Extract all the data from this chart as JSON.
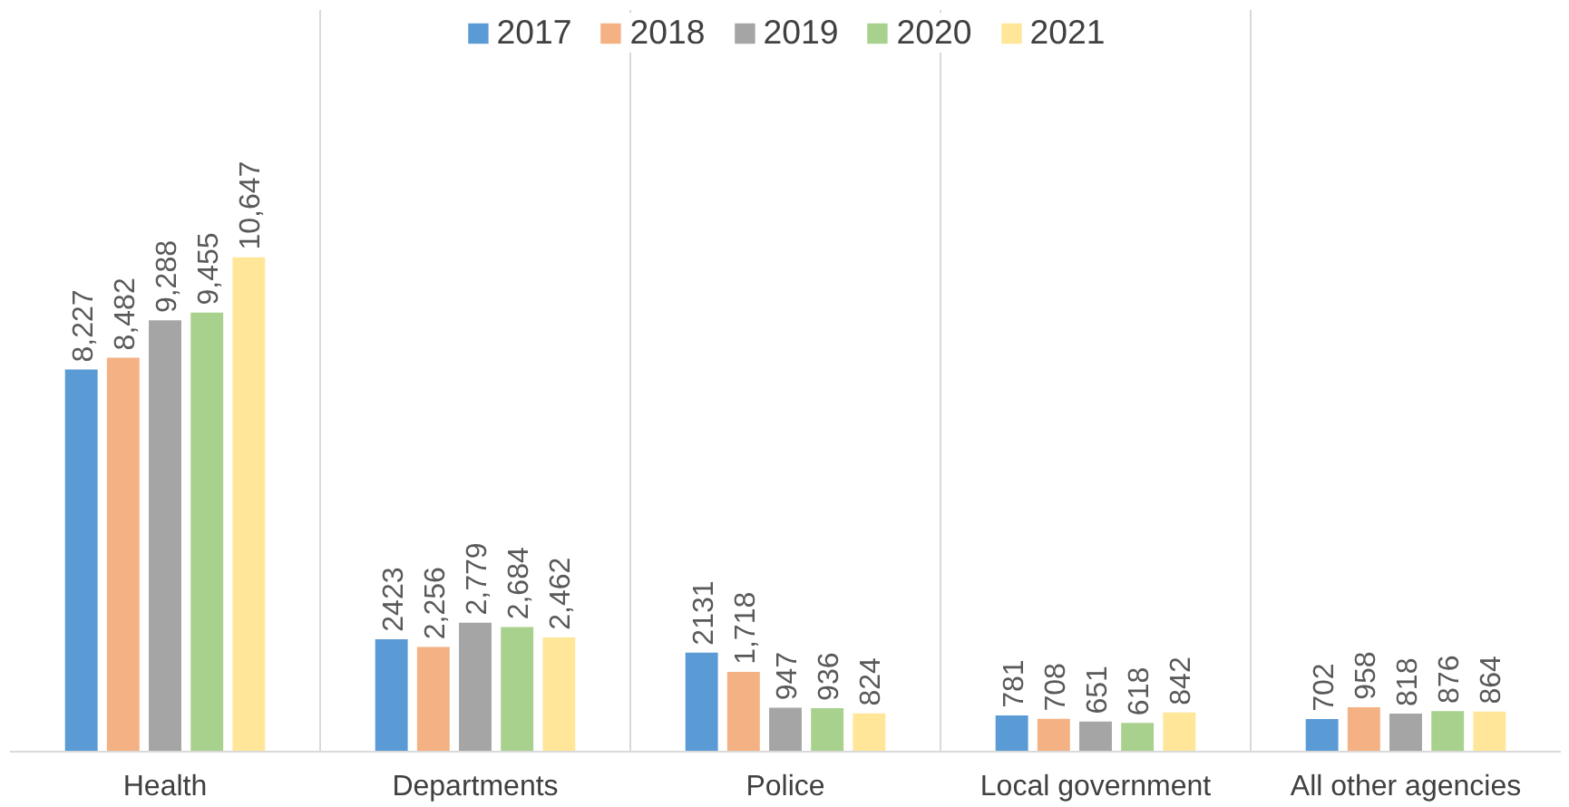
{
  "chart_data": {
    "type": "bar",
    "categories": [
      "Health",
      "Departments",
      "Police",
      "Local government",
      "All other agencies"
    ],
    "series": [
      {
        "name": "2017",
        "color": "#5b9bd5",
        "values": [
          8227,
          2423,
          2131,
          781,
          702
        ],
        "value_labels": [
          "8,227",
          "2423",
          "2131",
          "781",
          "702"
        ]
      },
      {
        "name": "2018",
        "color": "#f4b183",
        "values": [
          8482,
          2256,
          1718,
          708,
          958
        ],
        "value_labels": [
          "8,482",
          "2,256",
          "1,718",
          "708",
          "958"
        ]
      },
      {
        "name": "2019",
        "color": "#a5a5a5",
        "values": [
          9288,
          2779,
          947,
          651,
          818
        ],
        "value_labels": [
          "9,288",
          "2,779",
          "947",
          "651",
          "818"
        ]
      },
      {
        "name": "2020",
        "color": "#a9d18e",
        "values": [
          9455,
          2684,
          936,
          618,
          876
        ],
        "value_labels": [
          "9,455",
          "2,684",
          "936",
          "618",
          "876"
        ]
      },
      {
        "name": "2021",
        "color": "#ffe699",
        "values": [
          10647,
          2462,
          824,
          842,
          864
        ],
        "value_labels": [
          "10,647",
          "2,462",
          "824",
          "842",
          "864"
        ]
      }
    ],
    "legend": "top",
    "grid": "x"
  }
}
